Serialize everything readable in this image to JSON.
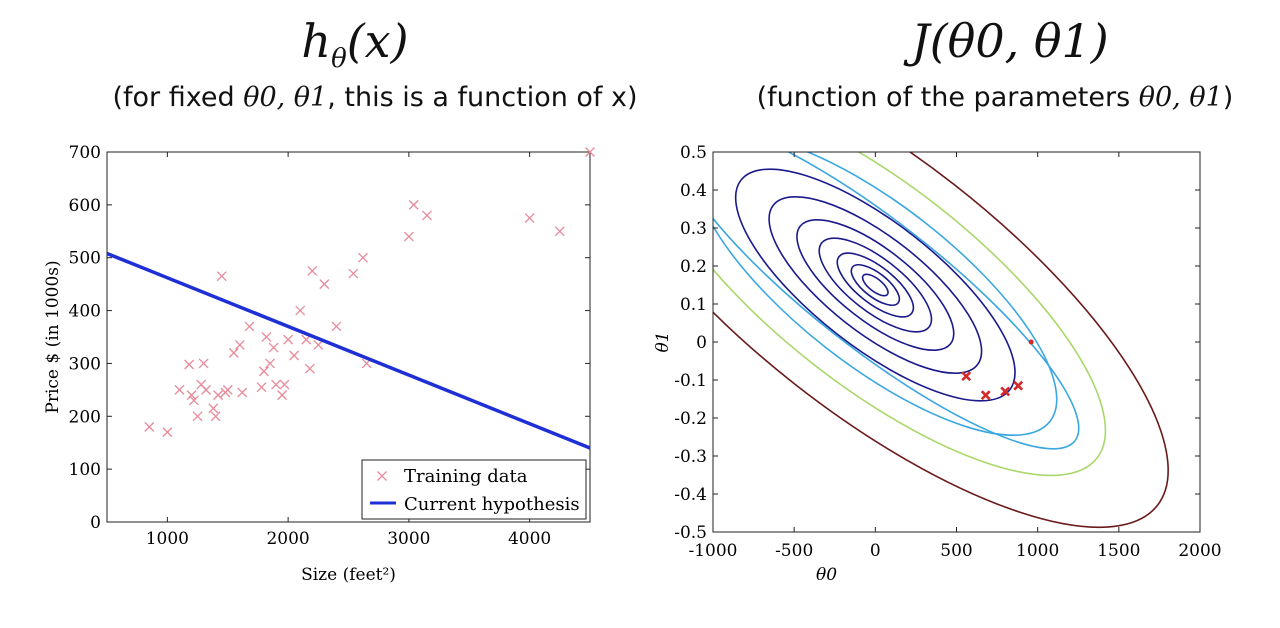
{
  "left_panel": {
    "title_main": "h",
    "title_sub_theta": "θ",
    "title_rest": "(x)",
    "subtitle_pre": "(for fixed ",
    "subtitle_params": "θ0, θ1",
    "subtitle_post": ", this is a function of x)"
  },
  "right_panel": {
    "title": "J(θ0, θ1)",
    "subtitle_pre": "(function of the parameters ",
    "subtitle_params": "θ0, θ1",
    "subtitle_post": ")"
  },
  "colors": {
    "hypothesis": "#1f2fd6",
    "training": "#e88a9a",
    "path": "#d42a2a",
    "contour_inner": "#1a1a8c",
    "contour_mid": "#3aa7e0",
    "contour_green": "#a9d86a",
    "contour_outer": "#6b1a1a"
  },
  "chart_data": [
    {
      "type": "scatter",
      "title": "",
      "xlabel": "Size (feet²)",
      "ylabel": "Price $ (in 1000s)",
      "xlim": [
        500,
        4500
      ],
      "ylim": [
        0,
        700
      ],
      "xticks": [
        1000,
        2000,
        3000,
        4000
      ],
      "yticks": [
        0,
        100,
        200,
        300,
        400,
        500,
        600,
        700
      ],
      "legend": {
        "placement": "bottom-right",
        "entries": [
          "Training data",
          "Current hypothesis"
        ]
      },
      "series": [
        {
          "name": "Training data",
          "marker": "x",
          "points": [
            [
              850,
              180
            ],
            [
              1000,
              170
            ],
            [
              1100,
              250
            ],
            [
              1180,
              298
            ],
            [
              1200,
              240
            ],
            [
              1220,
              230
            ],
            [
              1250,
              200
            ],
            [
              1280,
              260
            ],
            [
              1300,
              300
            ],
            [
              1320,
              250
            ],
            [
              1380,
              215
            ],
            [
              1400,
              200
            ],
            [
              1420,
              240
            ],
            [
              1450,
              465
            ],
            [
              1480,
              245
            ],
            [
              1500,
              250
            ],
            [
              1550,
              320
            ],
            [
              1600,
              335
            ],
            [
              1620,
              245
            ],
            [
              1680,
              370
            ],
            [
              1780,
              255
            ],
            [
              1800,
              285
            ],
            [
              1820,
              350
            ],
            [
              1850,
              300
            ],
            [
              1880,
              330
            ],
            [
              1900,
              260
            ],
            [
              1950,
              240
            ],
            [
              1970,
              260
            ],
            [
              2000,
              345
            ],
            [
              2050,
              315
            ],
            [
              2100,
              400
            ],
            [
              2150,
              345
            ],
            [
              2180,
              290
            ],
            [
              2200,
              475
            ],
            [
              2250,
              335
            ],
            [
              2300,
              450
            ],
            [
              2400,
              370
            ],
            [
              2540,
              470
            ],
            [
              2620,
              500
            ],
            [
              2650,
              300
            ],
            [
              3000,
              540
            ],
            [
              3040,
              600
            ],
            [
              3150,
              580
            ],
            [
              4000,
              575
            ],
            [
              4250,
              550
            ],
            [
              4500,
              700
            ]
          ]
        },
        {
          "name": "Current hypothesis",
          "type": "line",
          "points": [
            [
              500,
              508
            ],
            [
              4500,
              140
            ]
          ]
        }
      ]
    },
    {
      "type": "contour",
      "title": "J(θ0, θ1)",
      "xlabel": "θ0",
      "ylabel": "θ1",
      "xlim": [
        -1000,
        2000
      ],
      "ylim": [
        -0.5,
        0.5
      ],
      "xticks": [
        -1000,
        -500,
        0,
        500,
        1000,
        1500,
        2000
      ],
      "yticks": [
        -0.5,
        -0.4,
        -0.3,
        -0.2,
        -0.1,
        0,
        0.1,
        0.2,
        0.3,
        0.4,
        0.5
      ],
      "minimum": [
        0,
        0.15
      ],
      "contour_levels": [
        {
          "rx": 90,
          "ry": 0.04,
          "color": "inner"
        },
        {
          "rx": 170,
          "ry": 0.075,
          "color": "inner"
        },
        {
          "rx": 270,
          "ry": 0.115,
          "color": "inner"
        },
        {
          "rx": 400,
          "ry": 0.165,
          "color": "inner"
        },
        {
          "rx": 560,
          "ry": 0.225,
          "color": "inner"
        },
        {
          "rx": 760,
          "ry": 0.3,
          "color": "inner"
        },
        {
          "rx": 1000,
          "ry": 0.39,
          "color": "inner"
        },
        {
          "rx": 1300,
          "ry": 0.5,
          "color": "mid"
        },
        {
          "rx": 1650,
          "ry": 0.63,
          "color": "green"
        },
        {
          "rx": 2100,
          "ry": 0.8,
          "color": "outer"
        }
      ],
      "path_points": [
        [
          560,
          -0.09
        ],
        [
          680,
          -0.14
        ],
        [
          800,
          -0.13
        ],
        [
          880,
          -0.115
        ]
      ],
      "extra_point": [
        960,
        0.0
      ]
    }
  ]
}
